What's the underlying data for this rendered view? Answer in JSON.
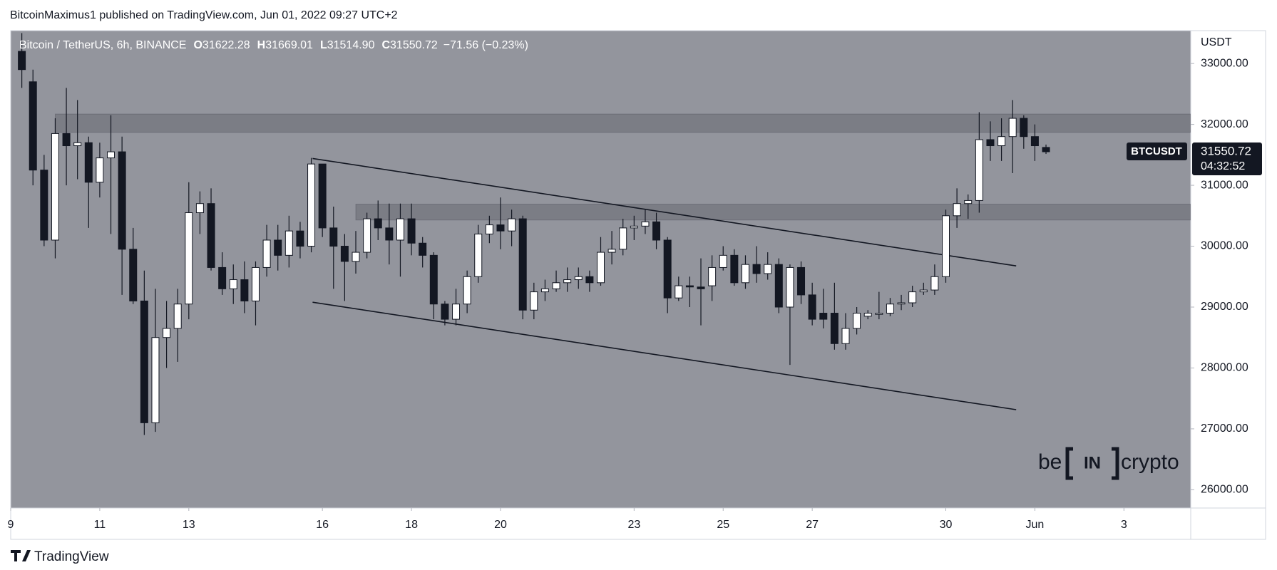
{
  "page": {
    "credit": "BitcoinMaximus1 published on TradingView.com, Jun 01, 2022 09:27 UTC+2",
    "brand": "TradingView"
  },
  "chart_data": {
    "type": "candlestick",
    "header": {
      "symbol": "Bitcoin / TetherUS, 6h, BINANCE",
      "open_label": "O",
      "open": "31622.28",
      "high_label": "H",
      "high": "31669.01",
      "low_label": "L",
      "low": "31514.90",
      "close_label": "C",
      "close": "31550.72",
      "change": "−71.56 (−0.23%)"
    },
    "y_axis_unit": "USDT",
    "price_tag": {
      "symbol": "BTCUSDT",
      "price": "31550.72",
      "countdown": "04:32:52"
    },
    "watermark": {
      "left": "be",
      "middle": "IN",
      "right": "crypto"
    },
    "background": "#93959d",
    "up_color": "#ffffff",
    "down_color": "#131722",
    "x": [
      9.25,
      9.5,
      9.75,
      10,
      10.25,
      10.5,
      10.75,
      11,
      11.25,
      11.5,
      11.75,
      12,
      12.25,
      12.5,
      12.75,
      13,
      13.25,
      13.5,
      13.75,
      14,
      14.25,
      14.5,
      14.75,
      15,
      15.25,
      15.5,
      15.75,
      16,
      16.25,
      16.5,
      16.75,
      17,
      17.25,
      17.5,
      17.75,
      18,
      18.25,
      18.5,
      18.75,
      19,
      19.25,
      19.5,
      19.75,
      20,
      20.25,
      20.5,
      20.75,
      21,
      21.25,
      21.5,
      21.75,
      22,
      22.25,
      22.5,
      22.75,
      23,
      23.25,
      23.5,
      23.75,
      24,
      24.25,
      24.5,
      24.75,
      25,
      25.25,
      25.5,
      25.75,
      26,
      26.25,
      26.5,
      26.75,
      27,
      27.25,
      27.5,
      27.75,
      28,
      28.25,
      28.5,
      28.75,
      29,
      29.25,
      29.5,
      29.75,
      30,
      30.25,
      30.5,
      30.75,
      31,
      31.25,
      31.5,
      31.75,
      32,
      32.25
    ],
    "open": [
      33200,
      32700,
      31250,
      30100,
      31850,
      31650,
      31700,
      31050,
      31450,
      31550,
      29950,
      29100,
      27100,
      28500,
      28650,
      29050,
      30550,
      30700,
      29650,
      29300,
      29450,
      29100,
      29650,
      30100,
      29850,
      30250,
      30000,
      31350,
      30300,
      30000,
      29750,
      29900,
      30450,
      30300,
      30100,
      30450,
      30050,
      29850,
      29050,
      28800,
      29050,
      29500,
      30200,
      30350,
      30250,
      30450,
      28950,
      29250,
      29300,
      29400,
      29450,
      29500,
      29400,
      29900,
      29950,
      30300,
      30330,
      30400,
      30100,
      29150,
      29350,
      29330,
      29350,
      29650,
      29850,
      29400,
      29700,
      29550,
      29700,
      29000,
      29650,
      29200,
      28900,
      28900,
      28400,
      28650,
      28850,
      28880,
      28900,
      29050,
      29070,
      29250,
      29280,
      29500,
      30500,
      30700,
      30750,
      31750,
      31650,
      31800,
      32100,
      31800,
      31622.28
    ],
    "high": [
      33500,
      32900,
      31500,
      32100,
      32600,
      32400,
      31800,
      31700,
      32150,
      31800,
      30300,
      29600,
      29300,
      29100,
      29300,
      31050,
      30900,
      30950,
      29900,
      29700,
      29750,
      29750,
      30350,
      30350,
      30500,
      30400,
      31450,
      31350,
      30650,
      30200,
      30250,
      30550,
      30750,
      30700,
      30700,
      30700,
      30150,
      29900,
      29100,
      29300,
      29600,
      30350,
      30500,
      30800,
      30600,
      30500,
      29400,
      29450,
      29600,
      29650,
      29650,
      29600,
      30150,
      30250,
      30450,
      30500,
      30600,
      30550,
      30150,
      29500,
      29500,
      29800,
      29850,
      30000,
      29950,
      29850,
      30000,
      29900,
      29800,
      29700,
      29750,
      29400,
      29300,
      29400,
      28900,
      29000,
      28950,
      29250,
      29150,
      29200,
      29350,
      29400,
      29700,
      30600,
      30950,
      30850,
      32200,
      32050,
      32100,
      32400,
      32150,
      32000,
      31669.01
    ],
    "low": [
      32600,
      31000,
      30000,
      29800,
      31000,
      31100,
      30300,
      30800,
      30200,
      29200,
      29050,
      26900,
      26950,
      28000,
      28100,
      28800,
      30200,
      29600,
      29200,
      29050,
      28900,
      28700,
      29500,
      29600,
      29650,
      29800,
      29900,
      30150,
      29300,
      29100,
      29550,
      29800,
      30100,
      29700,
      29500,
      29850,
      29650,
      28800,
      28700,
      28700,
      28900,
      29400,
      30050,
      29950,
      30000,
      28800,
      28800,
      29100,
      29250,
      29250,
      29300,
      29250,
      29350,
      29700,
      29850,
      30100,
      30200,
      29950,
      28900,
      29100,
      29000,
      28700,
      29100,
      29600,
      29350,
      29300,
      29400,
      29450,
      28900,
      28050,
      29050,
      28700,
      28650,
      28300,
      28300,
      28550,
      28800,
      28800,
      28850,
      28950,
      29000,
      29200,
      29200,
      29400,
      30300,
      30450,
      30550,
      31400,
      31400,
      31200,
      31600,
      31400,
      31514.9
    ],
    "close": [
      32900,
      31250,
      30100,
      31850,
      31650,
      31700,
      31050,
      31450,
      31550,
      29950,
      29100,
      27100,
      28500,
      28650,
      29050,
      30550,
      30700,
      29650,
      29300,
      29450,
      29100,
      29650,
      30100,
      29850,
      30250,
      30000,
      31350,
      30300,
      30000,
      29750,
      29900,
      30450,
      30300,
      30100,
      30450,
      30050,
      29850,
      29050,
      28800,
      29050,
      29500,
      30200,
      30350,
      30250,
      30450,
      28950,
      29250,
      29300,
      29400,
      29450,
      29500,
      29400,
      29900,
      29950,
      30300,
      30330,
      30400,
      30100,
      29150,
      29350,
      29330,
      29300,
      29650,
      29850,
      29400,
      29700,
      29550,
      29700,
      29000,
      29650,
      29200,
      28800,
      28800,
      28400,
      28650,
      28900,
      28900,
      28900,
      29050,
      29070,
      29250,
      29280,
      29500,
      30500,
      30700,
      30750,
      31750,
      31650,
      31800,
      32100,
      31800,
      31650,
      31550.72
    ],
    "zones": [
      {
        "from": 10,
        "low": 31870,
        "high": 32170
      },
      {
        "from": 16.75,
        "low": 30430,
        "high": 30690
      }
    ],
    "trendlines": [
      {
        "x": [
          15.78,
          31.58
        ],
        "y": [
          31440,
          29676
        ]
      },
      {
        "x": [
          15.78,
          31.58
        ],
        "y": [
          29080,
          27315
        ]
      }
    ],
    "xlim": [
      9,
      35.5
    ],
    "ylim": [
      25700,
      33540
    ],
    "xticks": [
      9,
      11,
      13,
      16,
      18,
      20,
      23,
      25,
      27,
      30,
      {
        "value": 32,
        "label": "Jun"
      },
      {
        "value": 34,
        "label": "3"
      }
    ],
    "yticks": [
      {
        "value": 26000,
        "label": "26000.00"
      },
      {
        "value": 27000,
        "label": "27000.00"
      },
      {
        "value": 28000,
        "label": "28000.00"
      },
      {
        "value": 29000,
        "label": "29000.00"
      },
      {
        "value": 30000,
        "label": "30000.00"
      },
      {
        "value": 31000,
        "label": "31000.00"
      },
      {
        "value": 32000,
        "label": "32000.00"
      },
      {
        "value": 33000,
        "label": "33000.00"
      }
    ]
  }
}
